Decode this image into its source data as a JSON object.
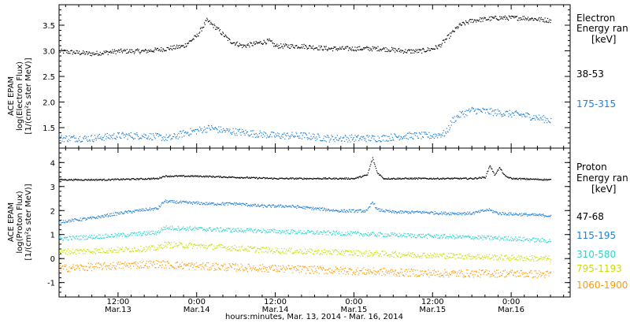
{
  "x_axis": {
    "title": "hours:minutes, Mar. 13, 2014 - Mar. 16, 2014",
    "ticks": [
      {
        "t": 12,
        "time": "12:00",
        "date": "Mar.13"
      },
      {
        "t": 24,
        "time": "0:00",
        "date": "Mar.14"
      },
      {
        "t": 36,
        "time": "12:00",
        "date": "Mar.14"
      },
      {
        "t": 48,
        "time": "0:00",
        "date": "Mar.15"
      },
      {
        "t": 60,
        "time": "12:00",
        "date": "Mar.15"
      },
      {
        "t": 72,
        "time": "0:00",
        "date": "Mar.16"
      }
    ]
  },
  "electron_panel": {
    "ylabel_lines": [
      "ACE EPAM",
      "log(Electron Flux)",
      "[1/(cm²s ster MeV)]"
    ],
    "legend_title_lines": [
      "Electron",
      "Energy ran",
      "[keV]"
    ],
    "legend_entries": [
      "38-53",
      "175-315"
    ]
  },
  "proton_panel": {
    "ylabel_lines": [
      "ACE EPAM",
      "log(Proton Flux)",
      "[1/(cm²s ster MeV)]"
    ],
    "legend_title_lines": [
      "Proton",
      "Energy ran",
      "[keV]"
    ],
    "legend_entries": [
      "47-68",
      "115-195",
      "310-580",
      "795-1193",
      "1060-1900"
    ]
  },
  "chart_data": [
    {
      "type": "scatter",
      "panel": "electron",
      "xlabel": "hours:minutes, Mar. 13, 2014 - Mar. 16, 2014",
      "ylabel": "ACE EPAM log(Electron Flux) [1/(cm²s ster MeV)]",
      "x_unit": "hours since Mar. 13, 2014 00:00",
      "xlim": [
        3,
        81
      ],
      "ylim": [
        1.1,
        3.9
      ],
      "yticks": [
        1.5,
        2.0,
        2.5,
        3.0,
        3.5
      ],
      "ytick_labels": [
        "1.5",
        "2.0",
        "2.5",
        "3.0",
        "3.5"
      ],
      "grid": false,
      "legend_placement": "right",
      "series": [
        {
          "name": "38-53",
          "color": "#000000",
          "x": [
            3,
            8,
            12,
            16,
            19.5,
            22,
            24,
            25.5,
            27,
            29,
            31,
            33,
            35,
            36,
            40,
            44,
            48,
            52,
            56,
            58,
            60,
            61,
            62.5,
            64,
            66,
            70,
            74,
            78
          ],
          "y": [
            3.0,
            2.95,
            3.0,
            3.0,
            3.05,
            3.1,
            3.3,
            3.6,
            3.45,
            3.2,
            3.1,
            3.15,
            3.2,
            3.1,
            3.1,
            3.05,
            3.05,
            3.05,
            3.0,
            3.0,
            3.05,
            3.1,
            3.3,
            3.5,
            3.6,
            3.65,
            3.65,
            3.6
          ]
        },
        {
          "name": "175-315",
          "color": "#1f7fd6",
          "x": [
            3,
            8,
            12,
            16,
            20,
            22,
            24,
            26,
            28,
            32,
            36,
            40,
            44,
            48,
            52,
            56,
            60,
            62,
            63,
            64,
            66,
            70,
            74,
            78
          ],
          "y": [
            1.3,
            1.3,
            1.35,
            1.35,
            1.3,
            1.4,
            1.45,
            1.5,
            1.45,
            1.4,
            1.35,
            1.35,
            1.3,
            1.3,
            1.3,
            1.35,
            1.35,
            1.4,
            1.65,
            1.75,
            1.85,
            1.8,
            1.75,
            1.65
          ]
        }
      ]
    },
    {
      "type": "scatter",
      "panel": "proton",
      "xlabel": "hours:minutes, Mar. 13, 2014 - Mar. 16, 2014",
      "ylabel": "ACE EPAM log(Proton Flux) [1/(cm²s ster MeV)]",
      "x_unit": "hours since Mar. 13, 2014 00:00",
      "xlim": [
        3,
        81
      ],
      "ylim": [
        -1.6,
        4.6
      ],
      "yticks": [
        -1,
        0,
        1,
        2,
        3,
        4
      ],
      "ytick_labels": [
        "-1",
        "0",
        "1",
        "2",
        "3",
        "4"
      ],
      "grid": false,
      "legend_placement": "right",
      "series": [
        {
          "name": "47-68",
          "color": "#000000",
          "x": [
            3,
            10,
            18,
            19,
            24,
            30,
            36,
            42,
            48,
            50,
            50.8,
            51.5,
            52.5,
            56,
            62,
            66,
            68,
            68.7,
            69.4,
            70.2,
            71,
            72,
            78
          ],
          "y": [
            3.3,
            3.3,
            3.35,
            3.45,
            3.45,
            3.4,
            3.35,
            3.35,
            3.35,
            3.5,
            4.2,
            3.6,
            3.35,
            3.35,
            3.35,
            3.35,
            3.4,
            3.9,
            3.5,
            3.8,
            3.45,
            3.35,
            3.3
          ]
        },
        {
          "name": "115-195",
          "color": "#1f7fd6",
          "x": [
            3,
            8,
            12,
            16,
            18,
            19,
            22,
            26,
            30,
            34,
            38,
            42,
            46,
            50,
            50.8,
            51.5,
            54,
            58,
            62,
            66,
            68.5,
            70,
            74,
            78
          ],
          "y": [
            1.55,
            1.7,
            1.9,
            2.05,
            2.1,
            2.4,
            2.35,
            2.3,
            2.3,
            2.2,
            2.2,
            2.1,
            2.0,
            2.0,
            2.4,
            2.05,
            1.95,
            1.95,
            1.9,
            1.9,
            2.05,
            1.9,
            1.85,
            1.8
          ]
        },
        {
          "name": "310-580",
          "color": "#2ad6cc",
          "x": [
            3,
            10,
            18,
            19,
            24,
            30,
            36,
            42,
            48,
            54,
            60,
            66,
            72,
            78
          ],
          "y": [
            0.85,
            0.95,
            1.1,
            1.3,
            1.25,
            1.2,
            1.15,
            1.1,
            1.05,
            1.0,
            0.95,
            0.9,
            0.85,
            0.75
          ]
        },
        {
          "name": "795-1193",
          "color": "#c8e000",
          "x": [
            3,
            10,
            18,
            19,
            24,
            30,
            36,
            42,
            48,
            54,
            60,
            66,
            72,
            78
          ],
          "y": [
            0.3,
            0.35,
            0.45,
            0.6,
            0.55,
            0.45,
            0.35,
            0.3,
            0.25,
            0.2,
            0.15,
            0.1,
            0.05,
            0.0
          ]
        },
        {
          "name": "1060-1900",
          "color": "#ff9900",
          "x": [
            3,
            10,
            18,
            20,
            24,
            30,
            36,
            42,
            48,
            54,
            60,
            66,
            72,
            78
          ],
          "y": [
            -0.4,
            -0.3,
            -0.2,
            -0.25,
            -0.3,
            -0.35,
            -0.4,
            -0.45,
            -0.5,
            -0.55,
            -0.6,
            -0.6,
            -0.6,
            -0.65
          ]
        }
      ]
    }
  ]
}
